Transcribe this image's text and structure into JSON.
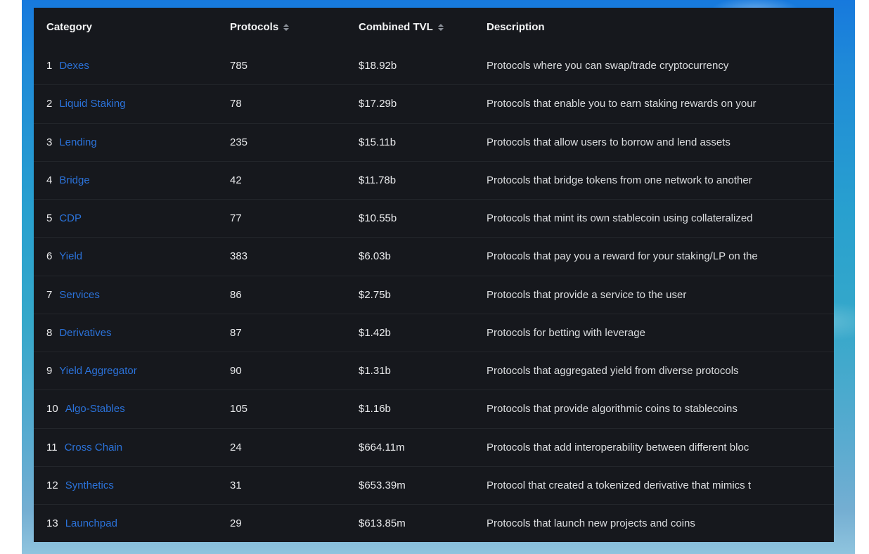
{
  "colors": {
    "table_background": "#16181d",
    "row_separator": "#23262b",
    "link_blue": "#2b72d9",
    "wallpaper_sky_top": "#1779dd",
    "wallpaper_sea_bottom": "#8fc4de"
  },
  "table": {
    "columns": [
      {
        "label": "Category",
        "sortable": false
      },
      {
        "label": "Protocols",
        "sortable": true
      },
      {
        "label": "Combined TVL",
        "sortable": true
      },
      {
        "label": "Description",
        "sortable": false
      }
    ],
    "rows": [
      {
        "rank": "1",
        "category": "Dexes",
        "protocols": "785",
        "tvl": "$18.92b",
        "description": "Protocols where you can swap/trade cryptocurrency"
      },
      {
        "rank": "2",
        "category": "Liquid Staking",
        "protocols": "78",
        "tvl": "$17.29b",
        "description": "Protocols that enable you to earn staking rewards on your"
      },
      {
        "rank": "3",
        "category": "Lending",
        "protocols": "235",
        "tvl": "$15.11b",
        "description": "Protocols that allow users to borrow and lend assets"
      },
      {
        "rank": "4",
        "category": "Bridge",
        "protocols": "42",
        "tvl": "$11.78b",
        "description": "Protocols that bridge tokens from one network to another"
      },
      {
        "rank": "5",
        "category": "CDP",
        "protocols": "77",
        "tvl": "$10.55b",
        "description": "Protocols that mint its own stablecoin using collateralized"
      },
      {
        "rank": "6",
        "category": "Yield",
        "protocols": "383",
        "tvl": "$6.03b",
        "description": "Protocols that pay you a reward for your staking/LP on the"
      },
      {
        "rank": "7",
        "category": "Services",
        "protocols": "86",
        "tvl": "$2.75b",
        "description": "Protocols that provide a service to the user"
      },
      {
        "rank": "8",
        "category": "Derivatives",
        "protocols": "87",
        "tvl": "$1.42b",
        "description": "Protocols for betting with leverage"
      },
      {
        "rank": "9",
        "category": "Yield Aggregator",
        "protocols": "90",
        "tvl": "$1.31b",
        "description": "Protocols that aggregated yield from diverse protocols"
      },
      {
        "rank": "10",
        "category": "Algo-Stables",
        "protocols": "105",
        "tvl": "$1.16b",
        "description": "Protocols that provide algorithmic coins to stablecoins"
      },
      {
        "rank": "11",
        "category": "Cross Chain",
        "protocols": "24",
        "tvl": "$664.11m",
        "description": "Protocols that add interoperability between different bloc"
      },
      {
        "rank": "12",
        "category": "Synthetics",
        "protocols": "31",
        "tvl": "$653.39m",
        "description": "Protocol that created a tokenized derivative that mimics t"
      },
      {
        "rank": "13",
        "category": "Launchpad",
        "protocols": "29",
        "tvl": "$613.85m",
        "description": "Protocols that launch new projects and coins"
      }
    ]
  }
}
